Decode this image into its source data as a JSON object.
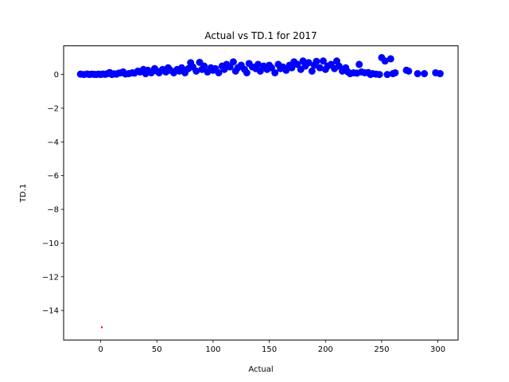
{
  "chart_data": {
    "type": "scatter",
    "title": "Actual vs TD.1 for 2017",
    "xlabel": "Actual",
    "ylabel": "TD.1",
    "xlim": [
      -33,
      318
    ],
    "ylim": [
      -15.75,
      1.7
    ],
    "x_ticks": [
      0,
      50,
      100,
      150,
      200,
      250,
      300
    ],
    "y_ticks": [
      0,
      -2,
      -4,
      -6,
      -8,
      -10,
      -12,
      -14
    ],
    "x_tick_labels": [
      "0",
      "50",
      "100",
      "150",
      "200",
      "250",
      "300"
    ],
    "y_tick_labels": [
      "0",
      "−2",
      "−4",
      "−6",
      "−8",
      "−10",
      "−12",
      "−14"
    ],
    "grid": false,
    "legend": "none",
    "series": [
      {
        "color": "#0000ff",
        "marker": "circle",
        "points": [
          [
            -18,
            0.02
          ],
          [
            -15,
            0.0
          ],
          [
            -12,
            0.03
          ],
          [
            -10,
            0.0
          ],
          [
            -8,
            0.02
          ],
          [
            -6,
            0.01
          ],
          [
            -4,
            0.0
          ],
          [
            -2,
            0.02
          ],
          [
            0,
            0.0
          ],
          [
            2,
            0.03
          ],
          [
            4,
            0.01
          ],
          [
            6,
            0.05
          ],
          [
            8,
            0.12
          ],
          [
            10,
            0.0
          ],
          [
            12,
            0.04
          ],
          [
            14,
            0.02
          ],
          [
            16,
            0.08
          ],
          [
            18,
            0.1
          ],
          [
            20,
            0.15
          ],
          [
            22,
            0.03
          ],
          [
            25,
            0.05
          ],
          [
            28,
            0.1
          ],
          [
            30,
            0.08
          ],
          [
            33,
            0.2
          ],
          [
            35,
            0.15
          ],
          [
            38,
            0.3
          ],
          [
            40,
            0.05
          ],
          [
            42,
            0.25
          ],
          [
            45,
            0.1
          ],
          [
            48,
            0.35
          ],
          [
            50,
            0.2
          ],
          [
            52,
            0.1
          ],
          [
            55,
            0.3
          ],
          [
            58,
            0.15
          ],
          [
            60,
            0.4
          ],
          [
            62,
            0.25
          ],
          [
            65,
            0.1
          ],
          [
            68,
            0.3
          ],
          [
            70,
            0.2
          ],
          [
            72,
            0.4
          ],
          [
            75,
            0.1
          ],
          [
            78,
            0.35
          ],
          [
            80,
            0.7
          ],
          [
            82,
            0.45
          ],
          [
            85,
            0.2
          ],
          [
            88,
            0.72
          ],
          [
            90,
            0.3
          ],
          [
            92,
            0.5
          ],
          [
            95,
            0.15
          ],
          [
            98,
            0.4
          ],
          [
            100,
            0.25
          ],
          [
            102,
            0.35
          ],
          [
            105,
            0.1
          ],
          [
            108,
            0.5
          ],
          [
            110,
            0.3
          ],
          [
            112,
            0.6
          ],
          [
            115,
            0.45
          ],
          [
            118,
            0.75
          ],
          [
            120,
            0.2
          ],
          [
            122,
            0.4
          ],
          [
            125,
            0.55
          ],
          [
            128,
            0.3
          ],
          [
            130,
            0.1
          ],
          [
            132,
            0.65
          ],
          [
            135,
            0.45
          ],
          [
            138,
            0.35
          ],
          [
            140,
            0.6
          ],
          [
            142,
            0.2
          ],
          [
            145,
            0.5
          ],
          [
            148,
            0.3
          ],
          [
            150,
            0.55
          ],
          [
            152,
            0.4
          ],
          [
            155,
            0.1
          ],
          [
            158,
            0.6
          ],
          [
            160,
            0.35
          ],
          [
            162,
            0.45
          ],
          [
            165,
            0.25
          ],
          [
            168,
            0.55
          ],
          [
            170,
            0.4
          ],
          [
            172,
            0.75
          ],
          [
            175,
            0.6
          ],
          [
            178,
            0.3
          ],
          [
            180,
            0.8
          ],
          [
            182,
            0.5
          ],
          [
            185,
            0.7
          ],
          [
            188,
            0.2
          ],
          [
            190,
            0.55
          ],
          [
            192,
            0.78
          ],
          [
            195,
            0.4
          ],
          [
            198,
            0.8
          ],
          [
            200,
            0.3
          ],
          [
            202,
            0.5
          ],
          [
            205,
            0.6
          ],
          [
            208,
            0.35
          ],
          [
            210,
            0.8
          ],
          [
            212,
            0.5
          ],
          [
            215,
            0.2
          ],
          [
            218,
            0.4
          ],
          [
            220,
            0.15
          ],
          [
            222,
            0.05
          ],
          [
            225,
            0.1
          ],
          [
            228,
            0.08
          ],
          [
            230,
            0.6
          ],
          [
            232,
            0.15
          ],
          [
            235,
            0.1
          ],
          [
            238,
            0.12
          ],
          [
            240,
            0.0
          ],
          [
            242,
            0.05
          ],
          [
            245,
            0.02
          ],
          [
            248,
            0.0
          ],
          [
            250,
            1.0
          ],
          [
            253,
            0.8
          ],
          [
            255,
            0.0
          ],
          [
            258,
            0.93
          ],
          [
            260,
            0.05
          ],
          [
            262,
            0.1
          ],
          [
            272,
            0.25
          ],
          [
            274,
            0.2
          ],
          [
            282,
            0.05
          ],
          [
            288,
            0.05
          ],
          [
            298,
            0.1
          ],
          [
            302,
            0.05
          ]
        ]
      },
      {
        "color": "#ff0000",
        "marker": "dot",
        "points": [
          [
            1,
            -15.0
          ]
        ]
      }
    ]
  }
}
